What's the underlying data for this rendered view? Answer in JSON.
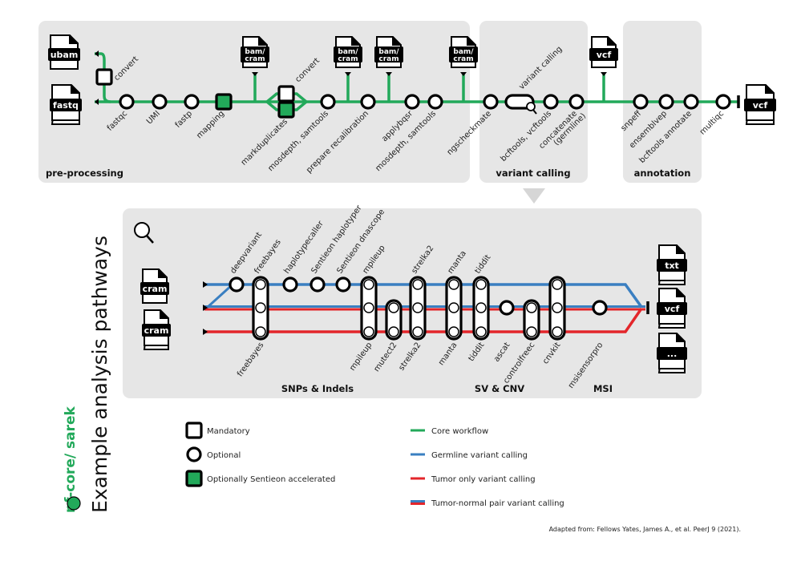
{
  "colors": {
    "core": "#22a95a",
    "germline": "#3a7fc1",
    "tumor": "#e3262b",
    "panel": "#e6e6e6",
    "sentieon": "#22a95a"
  },
  "top": {
    "sections": [
      "pre-processing",
      "variant calling",
      "annotation"
    ],
    "inputs": {
      "ubam": "ubam",
      "fastq": "fastq"
    },
    "convert_labels": [
      "convert",
      "convert"
    ],
    "variant_calling_label": "variant calling",
    "bam_cram": [
      "bam/",
      "cram"
    ],
    "vcf": "vcf",
    "final_output": "vcf",
    "steps": [
      {
        "label": "fastqc",
        "shape": "circle"
      },
      {
        "label": "UMI",
        "shape": "circle"
      },
      {
        "label": "fastp",
        "shape": "circle"
      },
      {
        "label": "mapping",
        "shape": "sentieon-square"
      },
      {
        "label": "markduplicates",
        "shape": "mandatory+sentieon-square"
      },
      {
        "label": "mosdepth, samtools",
        "shape": "circle"
      },
      {
        "label": "prepare recalibration",
        "shape": "circle"
      },
      {
        "label": "applybqsr",
        "shape": "circle"
      },
      {
        "label": "mosdepth, samtools",
        "shape": "circle"
      },
      {
        "label": "ngscheckmate",
        "shape": "circle"
      },
      {
        "label": "bcftools, vcftools",
        "shape": "circle"
      },
      {
        "label": "concatenate",
        "label2": "(germline)",
        "shape": "circle"
      },
      {
        "label": "snpeff",
        "shape": "circle"
      },
      {
        "label": "ensemblvep",
        "shape": "circle"
      },
      {
        "label": "bcftools annotate",
        "shape": "circle"
      },
      {
        "label": "multiqc",
        "shape": "circle"
      }
    ]
  },
  "bottom": {
    "inputs": [
      "cram",
      "cram"
    ],
    "outputs": [
      "txt",
      "vcf",
      "..."
    ],
    "sections": [
      "SNPs & Indels",
      "SV & CNV",
      "MSI"
    ],
    "labels_above": [
      "deepvariant",
      "freebayes",
      "haplotypecaller",
      "Sentieon haplotyper",
      "Sentieon dnascope",
      "mpileup",
      "strelka2",
      "manta",
      "tiddit"
    ],
    "labels_below": [
      "freebayes",
      "mpileup",
      "mutect2",
      "strelka2",
      "manta",
      "tiddit",
      "ascat",
      "controlfreec",
      "cnvkit",
      "msisensorpro"
    ]
  },
  "side": {
    "title": "Example analysis pathways",
    "logo": "nf-core/ sarek"
  },
  "legend": {
    "shapes": [
      "Mandatory",
      "Optional",
      "Optionally Sentieon accelerated"
    ],
    "lines": [
      "Core workflow",
      "Germline variant calling",
      "Tumor only variant calling",
      "Tumor-normal pair variant calling"
    ]
  },
  "citation": "Adapted from: Fellows Yates, James A., et al.  PeerJ 9 (2021)."
}
